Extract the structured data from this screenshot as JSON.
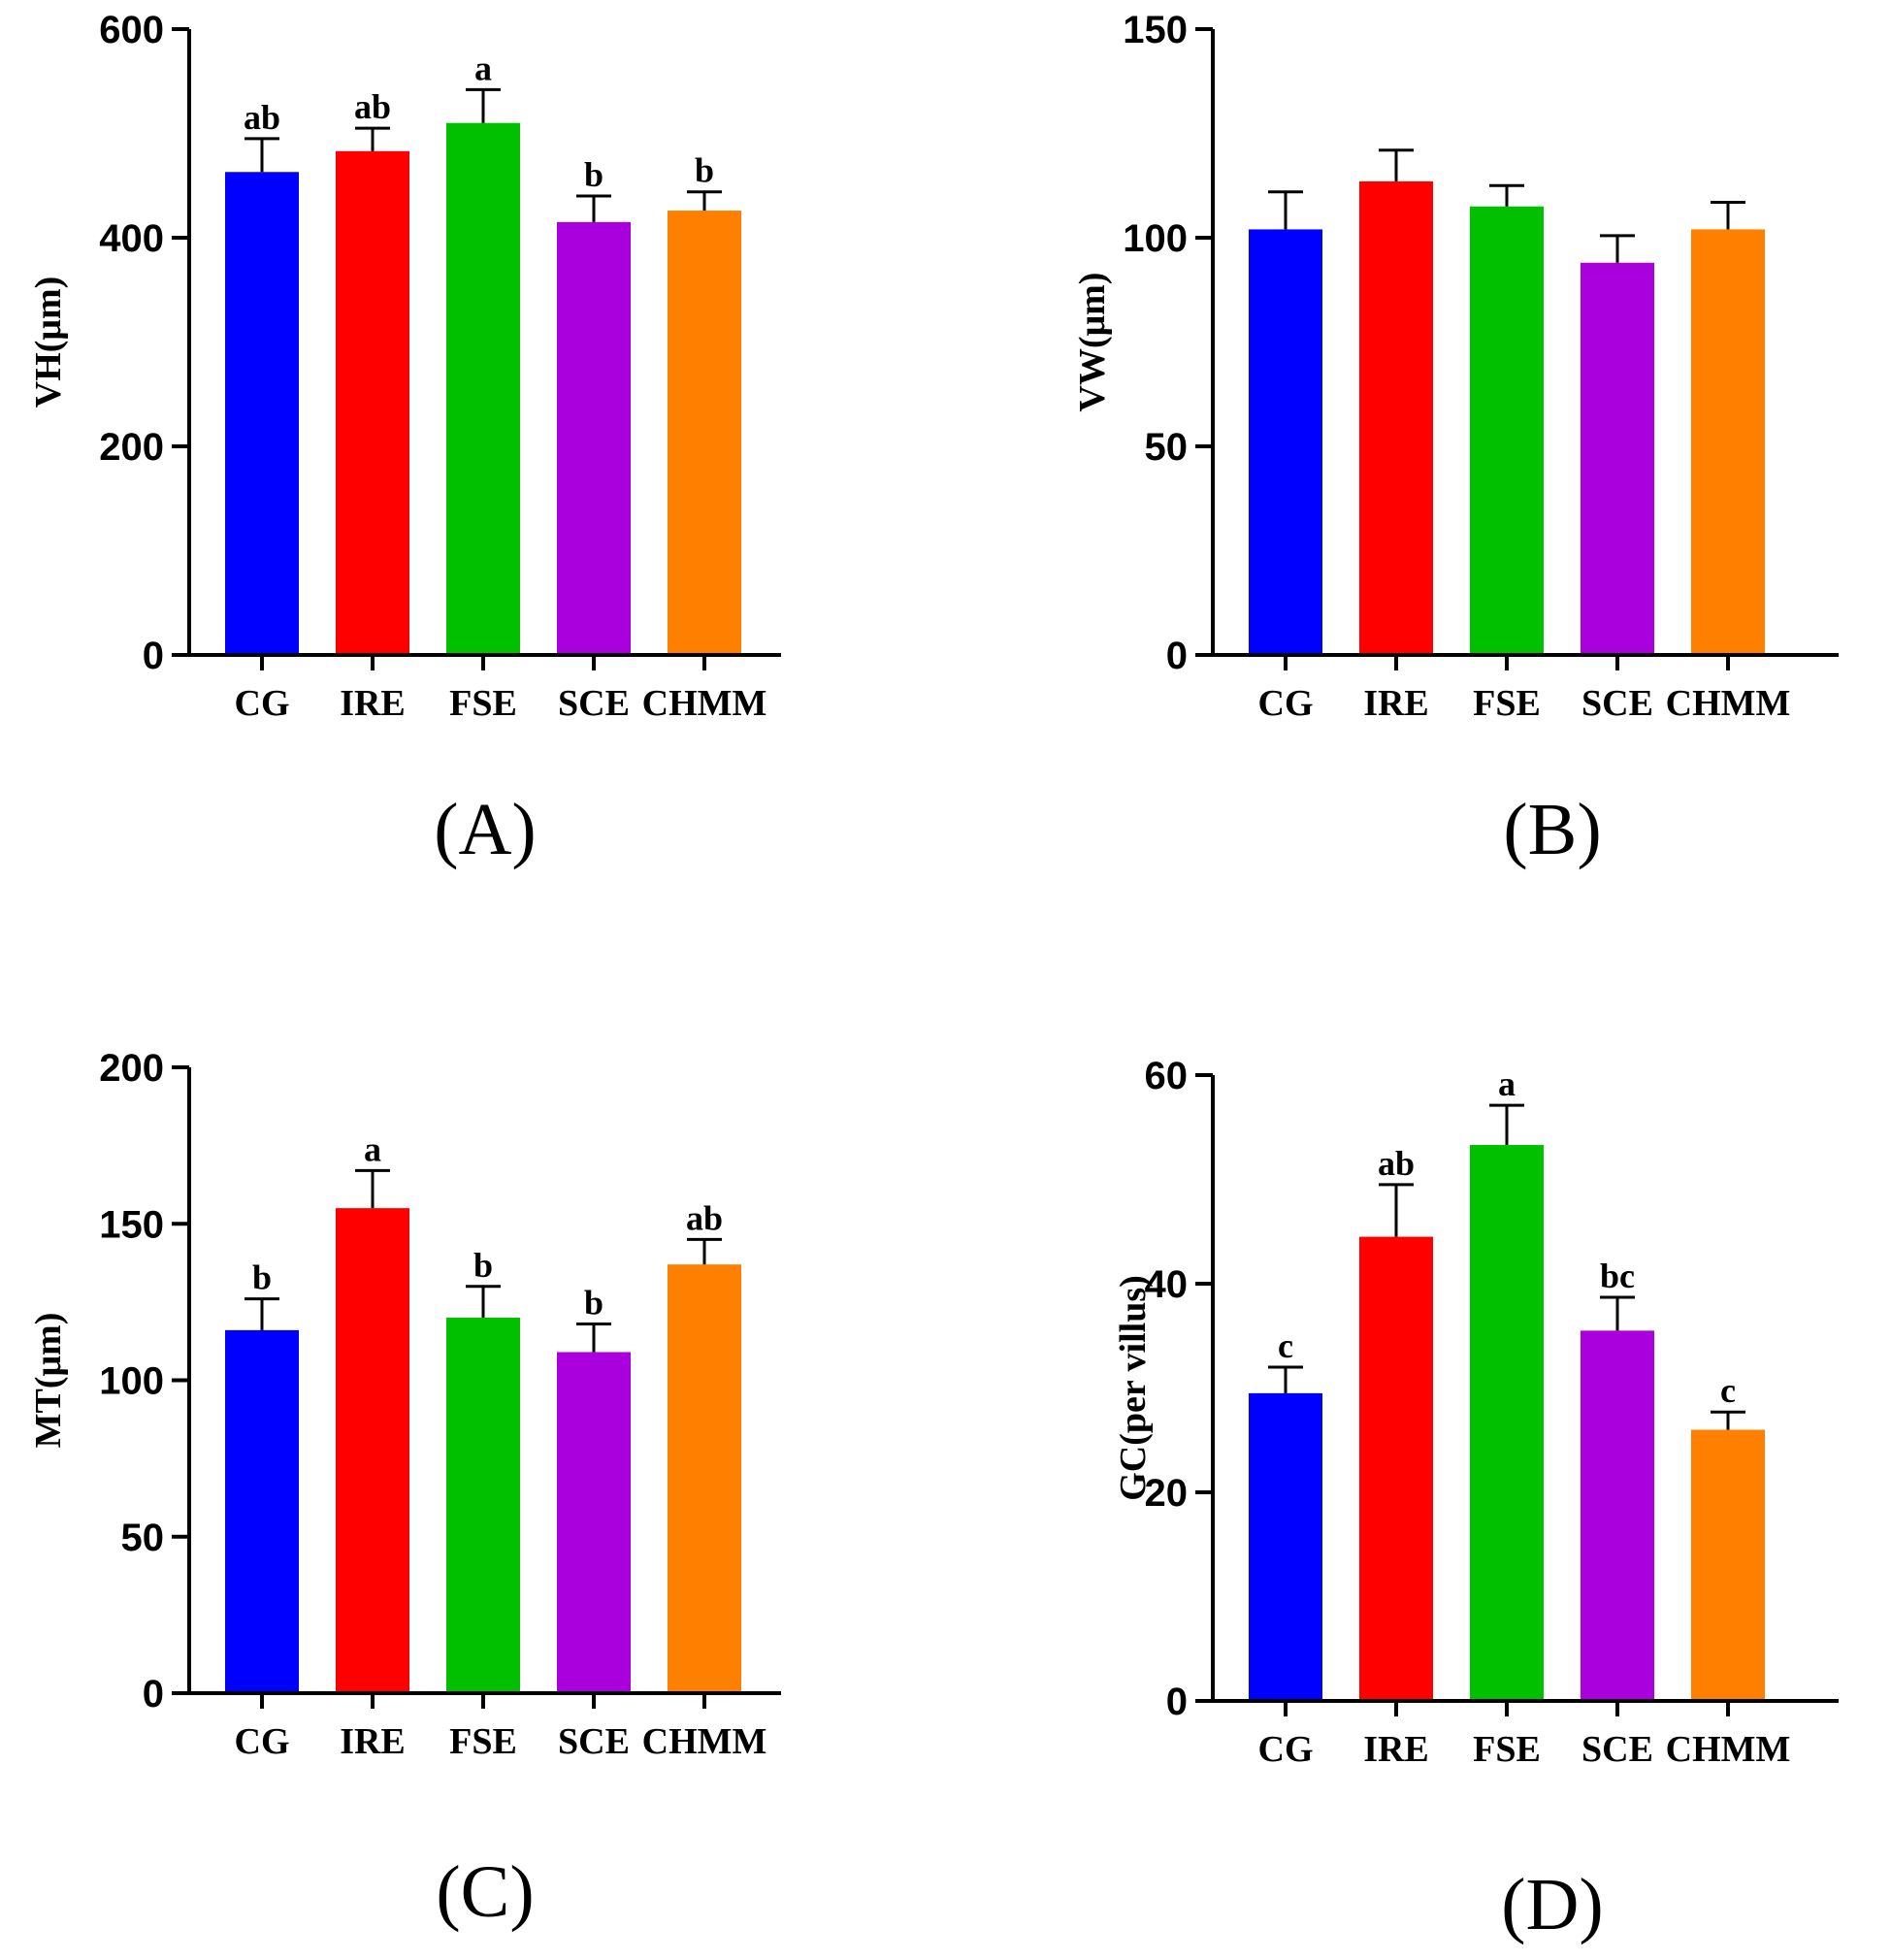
{
  "figure_title": "",
  "chart_data": [
    {
      "type": "bar",
      "panel_label": "(A)",
      "title": "",
      "xlabel": "",
      "ylabel": "VH(μm)",
      "ylim": [
        0,
        600
      ],
      "yticks": [
        "0",
        "200",
        "400",
        "600"
      ],
      "categories": [
        "CG",
        "IRE",
        "FSE",
        "SCE",
        "CHMM"
      ],
      "values": [
        463,
        483,
        510,
        415,
        426
      ],
      "errors": [
        32,
        22,
        32,
        25,
        18
      ],
      "significance": [
        "ab",
        "ab",
        "a",
        "b",
        "b"
      ],
      "colors": [
        "#0000ff",
        "#ff0000",
        "#00c000",
        "#aa00dd",
        "#ff8000"
      ]
    },
    {
      "type": "bar",
      "panel_label": "(B)",
      "title": "",
      "xlabel": "",
      "ylabel": "VW(μm)",
      "ylim": [
        0,
        150
      ],
      "yticks": [
        "0",
        "50",
        "100",
        "150"
      ],
      "categories": [
        "CG",
        "IRE",
        "FSE",
        "SCE",
        "CHMM"
      ],
      "values": [
        102,
        113.5,
        107.5,
        94,
        102
      ],
      "errors": [
        9,
        7.5,
        5,
        6.5,
        6.5
      ],
      "significance": [
        "",
        "",
        "",
        "",
        ""
      ],
      "colors": [
        "#0000ff",
        "#ff0000",
        "#00c000",
        "#aa00dd",
        "#ff8000"
      ]
    },
    {
      "type": "bar",
      "panel_label": "(C)",
      "title": "",
      "xlabel": "",
      "ylabel": "MT(μm)",
      "ylim": [
        0,
        200
      ],
      "yticks": [
        "0",
        "50",
        "100",
        "150",
        "200"
      ],
      "categories": [
        "CG",
        "IRE",
        "FSE",
        "SCE",
        "CHMM"
      ],
      "values": [
        116,
        155,
        120,
        109,
        137
      ],
      "errors": [
        10,
        12,
        10,
        9,
        8
      ],
      "significance": [
        "b",
        "a",
        "b",
        "b",
        "ab"
      ],
      "colors": [
        "#0000ff",
        "#ff0000",
        "#00c000",
        "#aa00dd",
        "#ff8000"
      ]
    },
    {
      "type": "bar",
      "panel_label": "(D)",
      "title": "",
      "xlabel": "",
      "ylabel": "GC(per villus)",
      "ylim": [
        0,
        60
      ],
      "yticks": [
        "0",
        "20",
        "40",
        "60"
      ],
      "categories": [
        "CG",
        "IRE",
        "FSE",
        "SCE",
        "CHMM"
      ],
      "values": [
        29.5,
        44.5,
        53.3,
        35.5,
        26
      ],
      "errors": [
        2.5,
        5,
        3.8,
        3.2,
        1.7
      ],
      "significance": [
        "c",
        "ab",
        "a",
        "bc",
        "c"
      ],
      "colors": [
        "#0000ff",
        "#ff0000",
        "#00c000",
        "#aa00dd",
        "#ff8000"
      ]
    }
  ]
}
